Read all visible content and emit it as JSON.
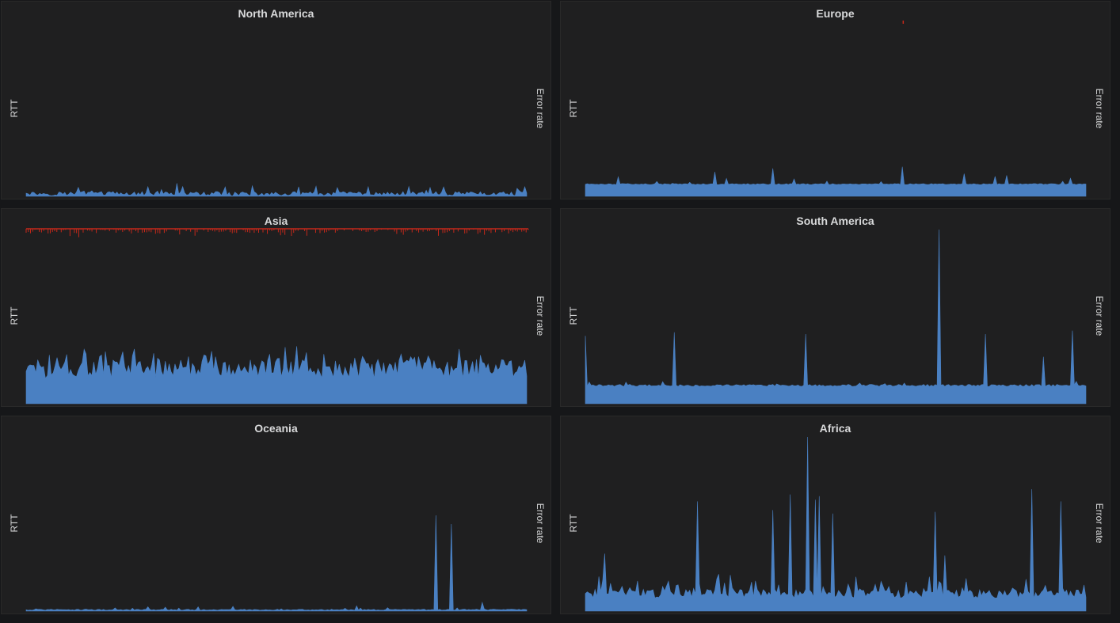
{
  "colors": {
    "background": "#161719",
    "panel": "#1f1f20",
    "rtt_series": "#4a80c2",
    "error_series": "#c4281a",
    "text": "#d8d9da"
  },
  "chart_data": [
    {
      "type": "area",
      "title": "North America",
      "ylabel": "RTT",
      "y2label": "Error rate",
      "grid": false,
      "rtt": {
        "baseline": 1.5,
        "noise": 1.2,
        "spike_rate": 0.12,
        "spike_height": 3.5,
        "spikes": [
          {
            "at": 0.3,
            "value": 7.5
          },
          {
            "at": 0.62,
            "value": 5.0
          },
          {
            "at": 0.995,
            "value": 5.5
          }
        ]
      },
      "errors": null,
      "ylim": [
        0,
        100
      ]
    },
    {
      "type": "area",
      "title": "Europe",
      "ylabel": "RTT",
      "y2label": "Error rate",
      "grid": false,
      "rtt": {
        "baseline": 7.0,
        "noise": 0.3,
        "spike_rate": 0.04,
        "spike_height": 4.5,
        "spikes": [
          {
            "at": 0.26,
            "value": 14.0
          },
          {
            "at": 0.375,
            "value": 16.0
          },
          {
            "at": 0.635,
            "value": 17.0
          },
          {
            "at": 0.755,
            "value": 13.0
          },
          {
            "at": 0.84,
            "value": 12.0
          }
        ]
      },
      "errors": {
        "points": [
          {
            "at": 0.635,
            "value": 1
          }
        ]
      },
      "ylim": [
        0,
        100
      ]
    },
    {
      "type": "area",
      "title": "Asia",
      "ylabel": "RTT",
      "y2label": "Error rate",
      "grid": false,
      "rtt": {
        "baseline": 20.0,
        "noise": 5.5,
        "spike_rate": 0.32,
        "spike_height": 8.0,
        "spikes": [
          {
            "at": 0.045,
            "value": 28.0
          },
          {
            "at": 0.15,
            "value": 28.0
          },
          {
            "at": 0.54,
            "value": 33.0
          },
          {
            "at": 0.77,
            "value": 27.0
          },
          {
            "at": 0.995,
            "value": 25.0
          }
        ]
      },
      "errors": {
        "dense": true,
        "density": 0.75,
        "min": 1,
        "max": 6
      },
      "ylim": [
        0,
        100
      ]
    },
    {
      "type": "area",
      "title": "South America",
      "ylabel": "RTT",
      "y2label": "Error rate",
      "grid": false,
      "rtt": {
        "baseline": 10.5,
        "noise": 0.6,
        "spike_rate": 0.05,
        "spike_height": 2.5,
        "spikes": [
          {
            "at": 0.0,
            "value": 39.0
          },
          {
            "at": 0.178,
            "value": 41.0
          },
          {
            "at": 0.44,
            "value": 40.0
          },
          {
            "at": 0.708,
            "value": 100.0
          },
          {
            "at": 0.798,
            "value": 40.0
          },
          {
            "at": 0.915,
            "value": 27.0
          },
          {
            "at": 0.972,
            "value": 42.0
          }
        ]
      },
      "errors": null,
      "ylim": [
        0,
        100
      ]
    },
    {
      "type": "area",
      "title": "Oceania",
      "ylabel": "RTT",
      "y2label": "Error rate",
      "grid": false,
      "rtt": {
        "baseline": 0.8,
        "noise": 0.3,
        "spike_rate": 0.06,
        "spike_height": 2.0,
        "spikes": [
          {
            "at": 0.243,
            "value": 2.5
          },
          {
            "at": 0.66,
            "value": 3.0
          },
          {
            "at": 0.82,
            "value": 55.0
          },
          {
            "at": 0.85,
            "value": 50.0
          },
          {
            "at": 0.91,
            "value": 5.0
          }
        ]
      },
      "errors": null,
      "ylim": [
        0,
        100
      ]
    },
    {
      "type": "area",
      "title": "Africa",
      "ylabel": "RTT",
      "y2label": "Error rate",
      "grid": false,
      "rtt": {
        "baseline": 10.0,
        "noise": 2.5,
        "spike_rate": 0.3,
        "spike_height": 10.0,
        "spikes": [
          {
            "at": 0.04,
            "value": 33.0
          },
          {
            "at": 0.225,
            "value": 63.0
          },
          {
            "at": 0.373,
            "value": 58.0
          },
          {
            "at": 0.408,
            "value": 67.0
          },
          {
            "at": 0.444,
            "value": 100.0
          },
          {
            "at": 0.46,
            "value": 64.0
          },
          {
            "at": 0.467,
            "value": 66.0
          },
          {
            "at": 0.495,
            "value": 56.0
          },
          {
            "at": 0.7,
            "value": 57.0
          },
          {
            "at": 0.72,
            "value": 32.0
          },
          {
            "at": 0.89,
            "value": 70.0
          },
          {
            "at": 0.95,
            "value": 63.0
          }
        ]
      },
      "errors": null,
      "ylim": [
        0,
        100
      ]
    }
  ]
}
